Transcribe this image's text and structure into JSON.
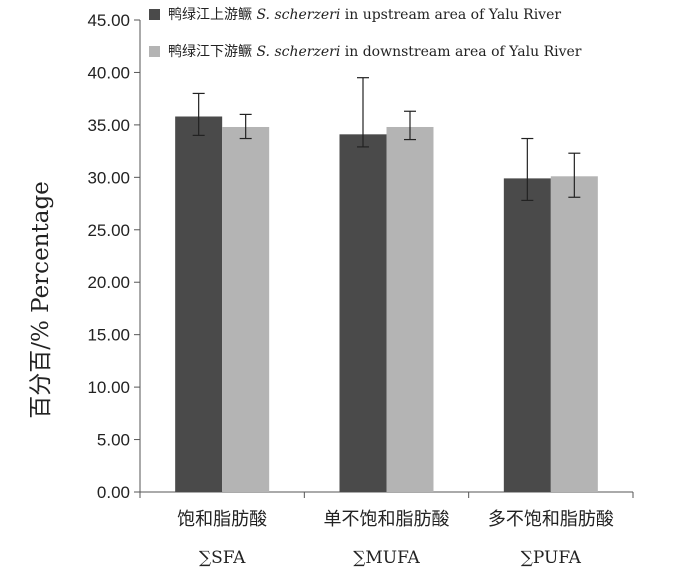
{
  "chart_data": {
    "type": "bar",
    "title": "",
    "ylabel": "百分百/% Percentage",
    "xlabel": "",
    "ylim": [
      0,
      45
    ],
    "ytick_step": 5,
    "y_tick_labels": [
      "0.00",
      "5.00",
      "10.00",
      "15.00",
      "20.00",
      "25.00",
      "30.00",
      "35.00",
      "40.00",
      "45.00"
    ],
    "grid": false,
    "legend_position": "top-right",
    "categories": [
      {
        "cn": "饱和脂肪酸",
        "en": "∑SFA"
      },
      {
        "cn": "单不饱和脂肪酸",
        "en": "∑MUFA"
      },
      {
        "cn": "多不饱和脂肪酸",
        "en": "∑PUFA"
      }
    ],
    "series": [
      {
        "name": "鸭绿江上游鳜 S. scherzeri in upstream area of Yalu River",
        "legend_cn": "鸭绿江上游鳜",
        "legend_species": "S. scherzeri",
        "legend_en": "in upstream area of Yalu River",
        "color": "#4a4a4a",
        "values": [
          35.8,
          34.1,
          29.9
        ],
        "error_low": [
          34.0,
          32.9,
          27.8
        ],
        "error_high": [
          38.0,
          39.5,
          33.7
        ]
      },
      {
        "name": "鸭绿江下游鳜 S. scherzeri in downstream area of Yalu River",
        "legend_cn": "鸭绿江下游鳜",
        "legend_species": "S. scherzeri",
        "legend_en": "in downstream area of Yalu River",
        "color": "#b4b4b4",
        "values": [
          34.8,
          34.8,
          30.1
        ],
        "error_low": [
          33.7,
          33.6,
          28.1
        ],
        "error_high": [
          36.0,
          36.3,
          32.3
        ]
      }
    ]
  }
}
